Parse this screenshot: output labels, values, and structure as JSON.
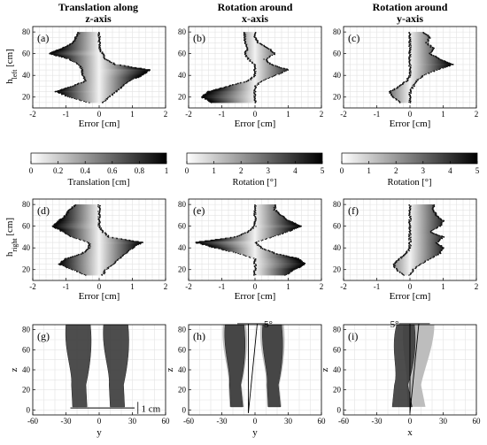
{
  "columns": [
    {
      "title_line1": "Translation along",
      "title_line2": "z-axis"
    },
    {
      "title_line1": "Rotation around",
      "title_line2": "x-axis"
    },
    {
      "title_line1": "Rotation around",
      "title_line2": "y-axis"
    }
  ],
  "error_plots": {
    "xlabel": "Error [cm]",
    "xticks": [
      "-2",
      "-1",
      "0",
      "1",
      "2"
    ],
    "yticks": [
      "20",
      "40",
      "60",
      "80"
    ],
    "top_ylabel_main": "h",
    "top_ylabel_sub": "left",
    "top_ylabel_unit": " [cm]",
    "bottom_ylabel_main": "h",
    "bottom_ylabel_sub": "right",
    "bottom_ylabel_unit": " [cm]",
    "panel_labels_top": [
      "(a)",
      "(b)",
      "(c)"
    ],
    "panel_labels_bottom": [
      "(d)",
      "(e)",
      "(f)"
    ]
  },
  "colorbars": [
    {
      "ticks": [
        "0",
        "0.2",
        "0.4",
        "0.6",
        "0.8",
        "1"
      ],
      "label": "Translation [cm]"
    },
    {
      "ticks": [
        "0",
        "1",
        "2",
        "3",
        "4",
        "5"
      ],
      "label": "Rotation [°]"
    },
    {
      "ticks": [
        "0",
        "1",
        "2",
        "3",
        "4",
        "5"
      ],
      "label": "Rotation [°]"
    }
  ],
  "leg_plots": {
    "panel_labels": [
      "(g)",
      "(h)",
      "(i)"
    ],
    "xlabels": [
      "y",
      "y",
      "x"
    ],
    "ylabel": "z",
    "xticks": [
      "-60",
      "-30",
      "0",
      "30",
      "60"
    ],
    "yticks": [
      "0",
      "20",
      "40",
      "60",
      "80"
    ],
    "annotations": [
      "1 cm",
      "5°",
      "5°"
    ]
  },
  "chart_data": [
    {
      "panel": "(a)",
      "type": "scatter",
      "xlabel": "Error [cm]",
      "ylabel": "h_left [cm]",
      "xlim": [
        -2,
        2
      ],
      "ylim": [
        10,
        85
      ],
      "colorbar": "Translation [cm]",
      "y": [
        15,
        20,
        25,
        30,
        35,
        40,
        45,
        50,
        55,
        60,
        65,
        70,
        75,
        80
      ],
      "x_min": [
        -0.3,
        -0.9,
        -1.3,
        -0.8,
        -0.4,
        -0.5,
        -0.5,
        -0.6,
        -0.9,
        -1.5,
        -1.1,
        -0.8,
        -0.7,
        -0.6
      ],
      "x_max": [
        0.1,
        0.3,
        0.5,
        0.7,
        0.9,
        1.3,
        1.5,
        0.5,
        0.2,
        0.1,
        0.0,
        0.0,
        0.0,
        0.0
      ]
    },
    {
      "panel": "(b)",
      "type": "scatter",
      "xlabel": "Error [cm]",
      "ylabel": "h_left [cm]",
      "xlim": [
        -2,
        2
      ],
      "ylim": [
        10,
        85
      ],
      "colorbar": "Rotation [°]",
      "y": [
        15,
        20,
        25,
        30,
        35,
        40,
        45,
        50,
        55,
        60,
        65,
        70,
        75,
        80
      ],
      "x_min": [
        -1.3,
        -1.6,
        -1.4,
        -0.8,
        -0.2,
        0.0,
        0.0,
        0.0,
        -0.2,
        -0.3,
        -0.2,
        -0.3,
        -0.3,
        -0.3
      ],
      "x_max": [
        0.0,
        0.0,
        0.0,
        0.0,
        0.2,
        0.6,
        1.0,
        0.5,
        0.3,
        0.6,
        0.4,
        0.1,
        0.0,
        0.0
      ]
    },
    {
      "panel": "(c)",
      "type": "scatter",
      "xlabel": "Error [cm]",
      "ylabel": "h_left [cm]",
      "xlim": [
        -2,
        2
      ],
      "ylim": [
        10,
        85
      ],
      "colorbar": "Rotation [°]",
      "y": [
        15,
        20,
        25,
        30,
        35,
        40,
        45,
        50,
        55,
        60,
        65,
        70,
        75,
        80
      ],
      "x_min": [
        -0.3,
        -0.5,
        -0.6,
        -0.3,
        -0.1,
        0.0,
        0.0,
        0.0,
        0.0,
        0.0,
        0.0,
        0.0,
        0.0,
        0.0
      ],
      "x_max": [
        0.0,
        0.0,
        0.0,
        0.1,
        0.2,
        0.4,
        0.8,
        1.3,
        0.9,
        0.6,
        0.7,
        0.5,
        0.6,
        0.4
      ]
    },
    {
      "panel": "(d)",
      "type": "scatter",
      "xlabel": "Error [cm]",
      "ylabel": "h_right [cm]",
      "xlim": [
        -2,
        2
      ],
      "ylim": [
        10,
        85
      ],
      "colorbar": "Translation [cm]",
      "y": [
        15,
        20,
        25,
        30,
        35,
        40,
        45,
        50,
        55,
        60,
        65,
        70,
        75,
        80
      ],
      "x_min": [
        -0.4,
        -0.8,
        -1.2,
        -1.0,
        -0.5,
        -0.3,
        -0.3,
        -0.8,
        -1.1,
        -1.4,
        -1.2,
        -1.0,
        -0.9,
        -0.7
      ],
      "x_max": [
        0.1,
        0.2,
        0.4,
        0.6,
        0.8,
        1.0,
        1.3,
        0.3,
        0.1,
        0.0,
        0.0,
        0.0,
        0.0,
        0.0
      ]
    },
    {
      "panel": "(e)",
      "type": "scatter",
      "xlabel": "Error [cm]",
      "ylabel": "h_right [cm]",
      "xlim": [
        -2,
        2
      ],
      "ylim": [
        10,
        85
      ],
      "colorbar": "Rotation [°]",
      "y": [
        15,
        20,
        25,
        30,
        35,
        40,
        45,
        50,
        55,
        60,
        65,
        70,
        75,
        80
      ],
      "x_min": [
        0.0,
        0.0,
        0.0,
        0.0,
        -0.5,
        -1.2,
        -1.8,
        -0.6,
        -0.2,
        0.0,
        0.0,
        0.0,
        0.0,
        0.0
      ],
      "x_max": [
        0.9,
        1.2,
        1.5,
        1.3,
        0.6,
        0.2,
        0.0,
        0.5,
        1.0,
        1.4,
        1.0,
        0.8,
        0.6,
        0.6
      ]
    },
    {
      "panel": "(f)",
      "type": "scatter",
      "xlabel": "Error [cm]",
      "ylabel": "h_right [cm]",
      "xlim": [
        -2,
        2
      ],
      "ylim": [
        10,
        85
      ],
      "colorbar": "Rotation [°]",
      "y": [
        15,
        20,
        25,
        30,
        35,
        40,
        45,
        50,
        55,
        60,
        65,
        70,
        75,
        80
      ],
      "x_min": [
        -0.2,
        -0.4,
        -0.5,
        -0.3,
        -0.1,
        0.0,
        0.0,
        0.0,
        0.0,
        0.0,
        0.0,
        0.0,
        0.0,
        0.0
      ],
      "x_max": [
        0.0,
        0.1,
        0.3,
        0.6,
        0.9,
        1.0,
        0.8,
        1.0,
        0.6,
        0.9,
        1.0,
        0.8,
        0.7,
        0.7
      ]
    }
  ]
}
